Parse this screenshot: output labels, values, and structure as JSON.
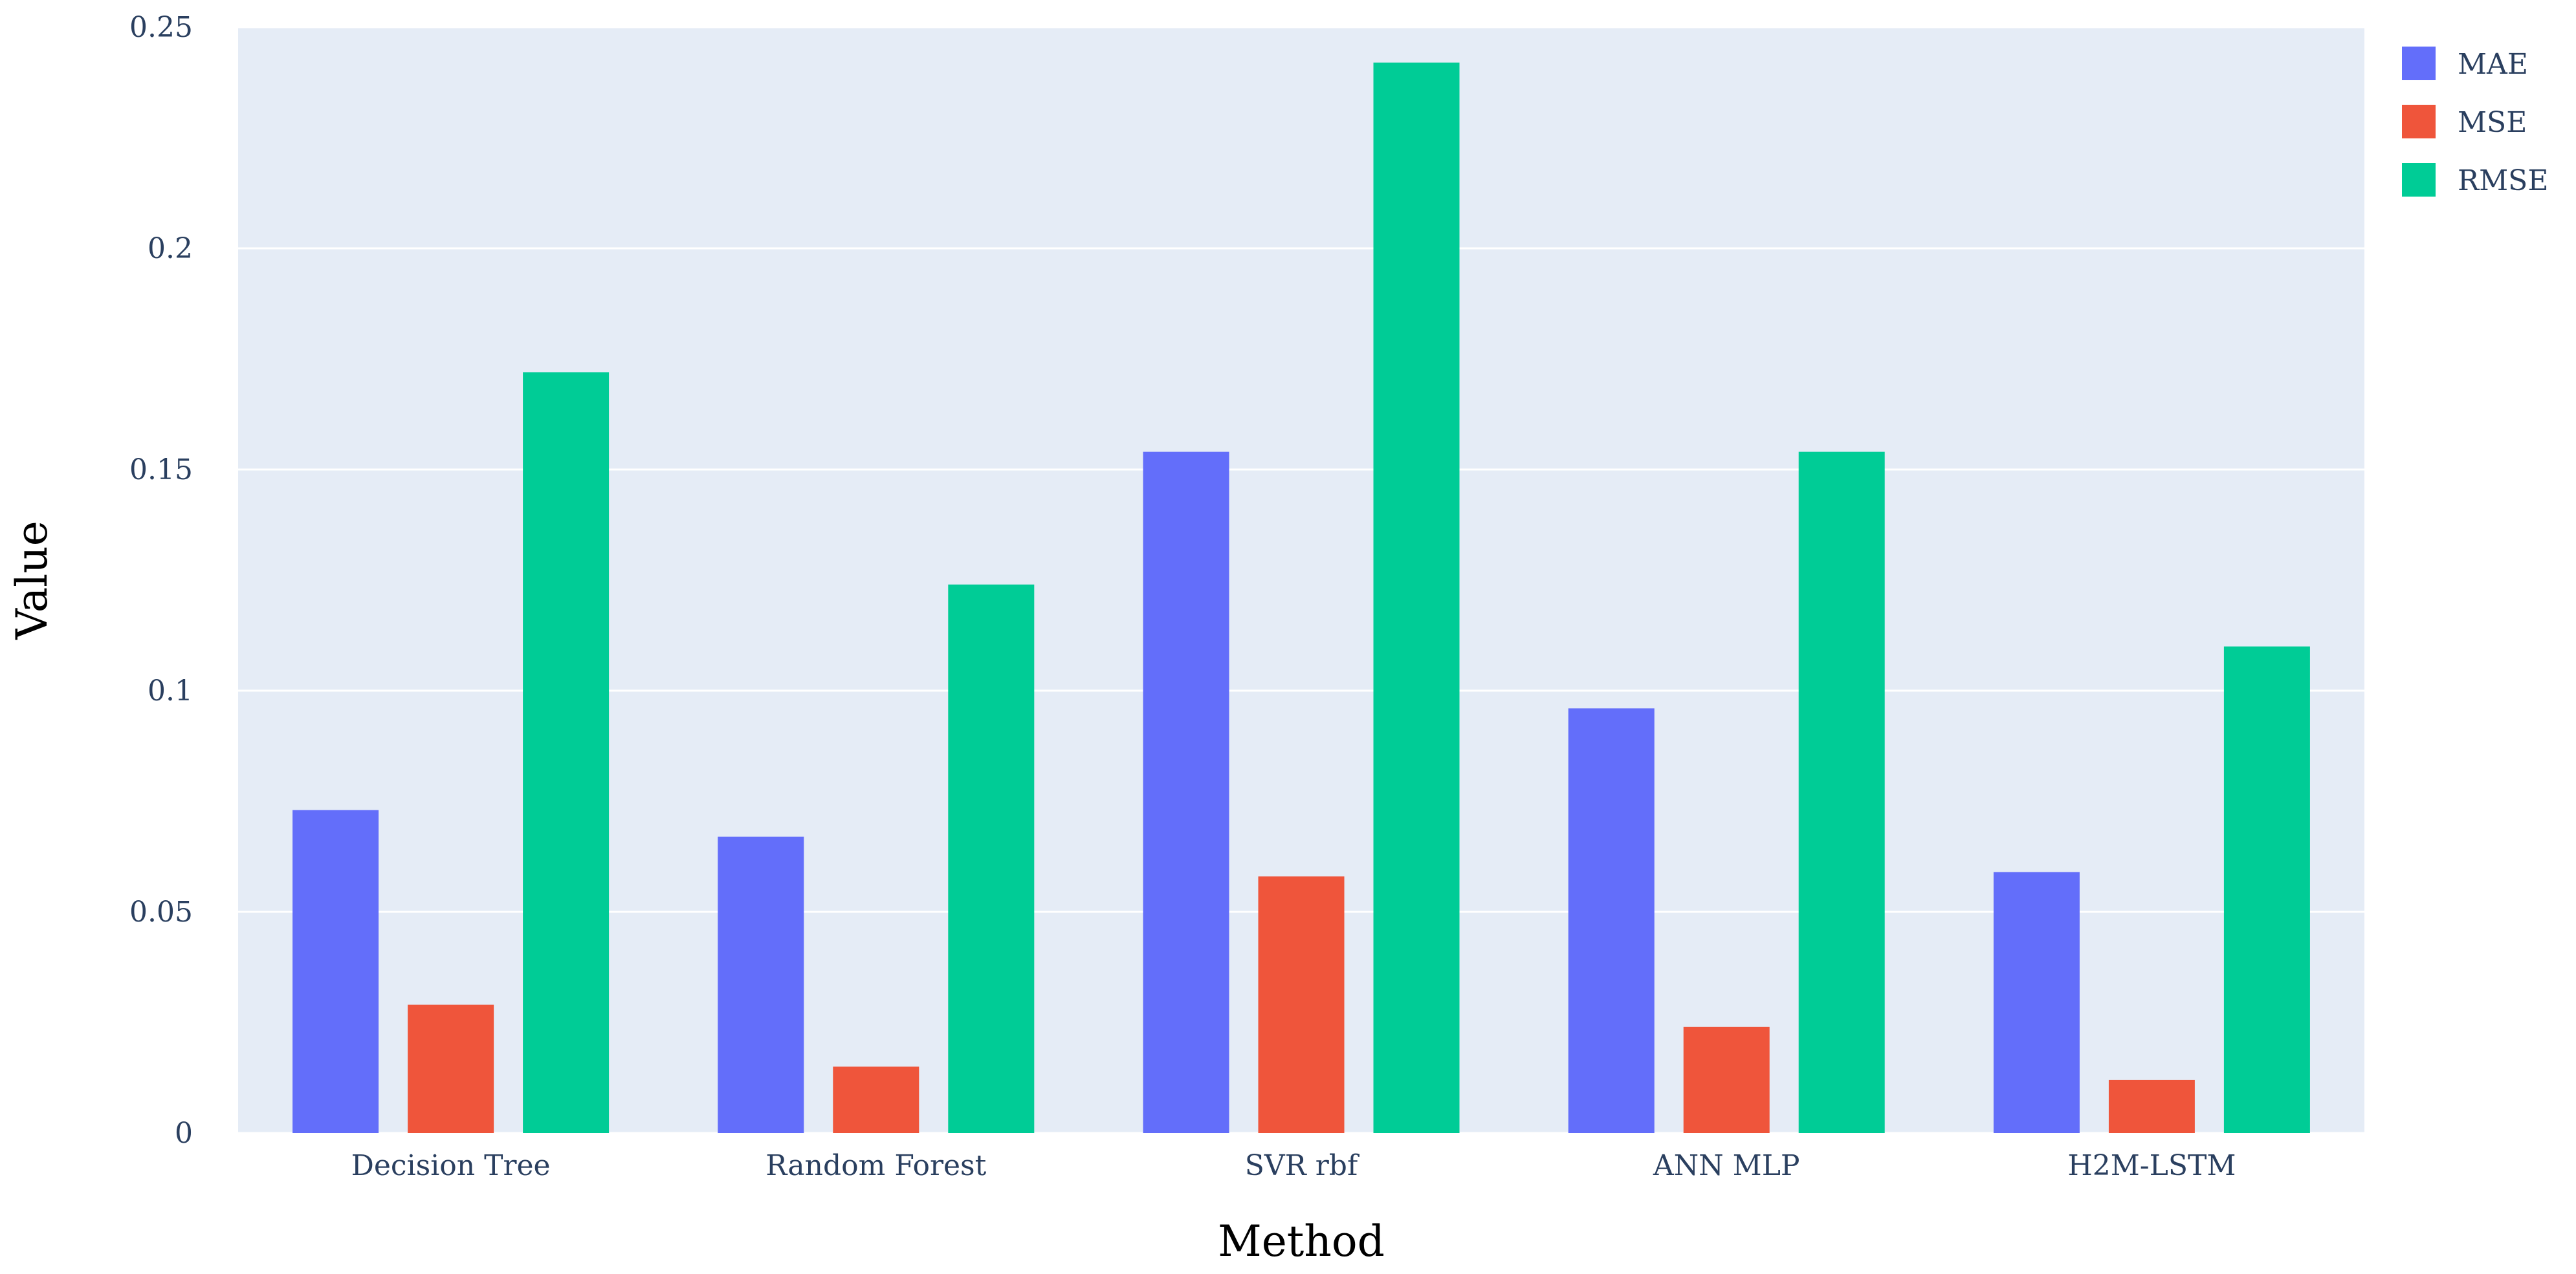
{
  "chart_data": {
    "type": "bar",
    "categories": [
      "Decision Tree",
      "Random Forest",
      "SVR rbf",
      "ANN MLP",
      "H2M-LSTM"
    ],
    "series": [
      {
        "name": "MAE",
        "color": "#636efa",
        "values": [
          0.073,
          0.067,
          0.154,
          0.096,
          0.059
        ]
      },
      {
        "name": "MSE",
        "color": "#ef553b",
        "values": [
          0.029,
          0.015,
          0.058,
          0.024,
          0.012
        ]
      },
      {
        "name": "RMSE",
        "color": "#00cc96",
        "values": [
          0.172,
          0.124,
          0.242,
          0.154,
          0.11
        ]
      }
    ],
    "xlabel": "Method",
    "ylabel": "Value",
    "ylim": [
      0,
      0.25
    ],
    "yticks": [
      {
        "value": 0,
        "label": "0"
      },
      {
        "value": 0.05,
        "label": "0.05"
      },
      {
        "value": 0.1,
        "label": "0.1"
      },
      {
        "value": 0.15,
        "label": "0.15"
      },
      {
        "value": 0.2,
        "label": "0.2"
      },
      {
        "value": 0.25,
        "label": "0.25"
      }
    ],
    "grid": true,
    "legend_position": "top-right",
    "plot_background": "#e5ecf6"
  }
}
